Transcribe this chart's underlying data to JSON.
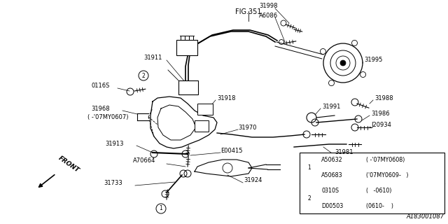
{
  "fig_ref": "FIG.351",
  "diagram_id": "A183001087",
  "background": "#ffffff",
  "table": {
    "rows": [
      [
        "A50632",
        "( -'07MY0608)"
      ],
      [
        "A50683",
        "('07MY0609-   )"
      ],
      [
        "0310S",
        "(   -0610)"
      ],
      [
        "D00503",
        "(0610-    )"
      ]
    ],
    "circle_rows": [
      0,
      2
    ],
    "circle_nums": [
      1,
      2
    ]
  }
}
